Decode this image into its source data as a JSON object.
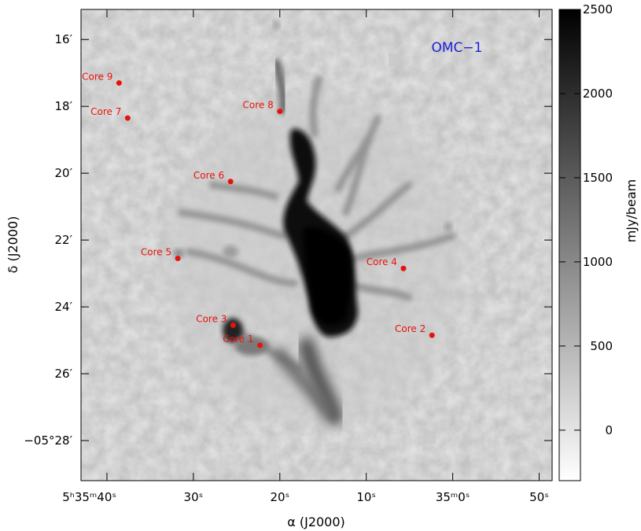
{
  "image": {
    "field_label": "OMC−1",
    "x_axis_title": "α (J2000)",
    "y_axis_title": "δ (J2000)",
    "colorbar_title": "mJy/beam",
    "colors": {
      "marker": "#e8120c",
      "label": "#e8120c",
      "field_label": "#1a22d6"
    }
  },
  "chart_data": {
    "type": "heatmap",
    "title": "",
    "xlabel": "α (J2000)",
    "ylabel": "δ (J2000)",
    "x_ticks": [
      {
        "text": "5ʰ35ᵐ40ˢ",
        "value": 40
      },
      {
        "text": "30ˢ",
        "value": 30
      },
      {
        "text": "20ˢ",
        "value": 20
      },
      {
        "text": "10ˢ",
        "value": 10
      },
      {
        "text": "35ᵐ0ˢ",
        "value": 0
      },
      {
        "text": "50ˢ",
        "value": -10
      }
    ],
    "y_ticks": [
      {
        "text": "16′",
        "value": 16
      },
      {
        "text": "18′",
        "value": 18
      },
      {
        "text": "20′",
        "value": 20
      },
      {
        "text": "22′",
        "value": 22
      },
      {
        "text": "24′",
        "value": 24
      },
      {
        "text": "26′",
        "value": 26
      },
      {
        "text": "−05°28′",
        "value": 28
      }
    ],
    "xlim": [
      43,
      -11.5
    ],
    "ylim": [
      29.2,
      15.1
    ],
    "colorbar": {
      "label": "mJy/beam",
      "ticks": [
        0,
        500,
        1000,
        1500,
        2000,
        2500
      ],
      "range": [
        -300,
        2500
      ]
    },
    "cores": [
      {
        "name": "Core 9",
        "ra": 38.6,
        "dec": 17.3
      },
      {
        "name": "Core 7",
        "ra": 37.6,
        "dec": 18.35
      },
      {
        "name": "Core 8",
        "ra": 20.0,
        "dec": 18.15
      },
      {
        "name": "Core 6",
        "ra": 25.7,
        "dec": 20.25
      },
      {
        "name": "Core 5",
        "ra": 31.8,
        "dec": 22.55
      },
      {
        "name": "Core 4",
        "ra": 5.7,
        "dec": 22.85
      },
      {
        "name": "Core 3",
        "ra": 25.4,
        "dec": 24.55
      },
      {
        "name": "Core 1",
        "ra": 22.3,
        "dec": 25.15
      },
      {
        "name": "Core 2",
        "ra": 2.4,
        "dec": 24.85
      }
    ]
  }
}
